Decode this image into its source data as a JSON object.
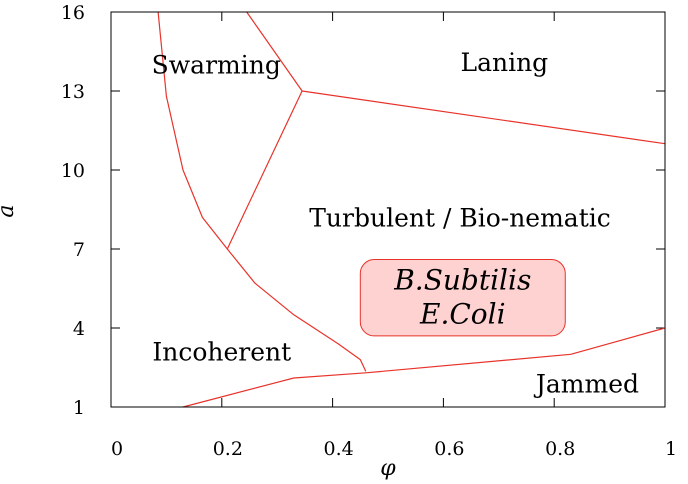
{
  "chart_data": {
    "type": "phase-diagram",
    "title": "",
    "xlabel": "φ",
    "ylabel": "a",
    "xlim": [
      0,
      1
    ],
    "ylim": [
      1,
      16
    ],
    "grid": false,
    "xticks": [
      0,
      0.2,
      0.4,
      0.6,
      0.8,
      1
    ],
    "yticks": [
      1,
      4,
      7,
      10,
      13,
      16
    ],
    "xtick_labels": [
      "0",
      "0.2",
      "0.4",
      "0.6",
      "0.8",
      "1"
    ],
    "ytick_labels": [
      "1",
      "4",
      "7",
      "10",
      "13",
      "16"
    ],
    "boundary_color": "#e8332a",
    "box_fill": "#ffd2d2",
    "box_stroke": "#e8332a",
    "boundaries": [
      {
        "name": "swarming-laning",
        "points": [
          [
            0.245,
            16
          ],
          [
            0.345,
            13
          ]
        ]
      },
      {
        "name": "laning-turbulent",
        "points": [
          [
            0.345,
            13
          ],
          [
            1.0,
            11.0
          ]
        ]
      },
      {
        "name": "swarming-turbulent",
        "points": [
          [
            0.345,
            13
          ],
          [
            0.21,
            7.0
          ]
        ]
      },
      {
        "name": "incoherent-ordered",
        "points": [
          [
            0.085,
            16
          ],
          [
            0.1,
            12.8
          ],
          [
            0.13,
            10
          ],
          [
            0.165,
            8.2
          ],
          [
            0.21,
            7.0
          ],
          [
            0.26,
            5.7
          ],
          [
            0.33,
            4.5
          ],
          [
            0.41,
            3.4
          ],
          [
            0.45,
            2.8
          ],
          [
            0.46,
            2.35
          ]
        ]
      },
      {
        "name": "jammed-boundary",
        "points": [
          [
            0.13,
            1
          ],
          [
            0.33,
            2.1
          ],
          [
            0.46,
            2.3
          ],
          [
            0.83,
            3.0
          ],
          [
            1.0,
            4.0
          ]
        ]
      }
    ],
    "regions": [
      {
        "label": "Swarming",
        "x": 0.19,
        "y": 14.0
      },
      {
        "label": "Laning",
        "x": 0.71,
        "y": 14.1
      },
      {
        "label": "Turbulent / Bio-nematic",
        "x": 0.63,
        "y": 8.2
      },
      {
        "label": "Incoherent",
        "x": 0.2,
        "y": 3.1
      },
      {
        "label": "Jammed",
        "x": 0.86,
        "y": 1.9
      }
    ],
    "highlight_box": {
      "labels": [
        "B.Subtilis",
        "E.Coli"
      ],
      "x_range": [
        0.45,
        0.82
      ],
      "y_range": [
        3.7,
        6.6
      ]
    }
  }
}
